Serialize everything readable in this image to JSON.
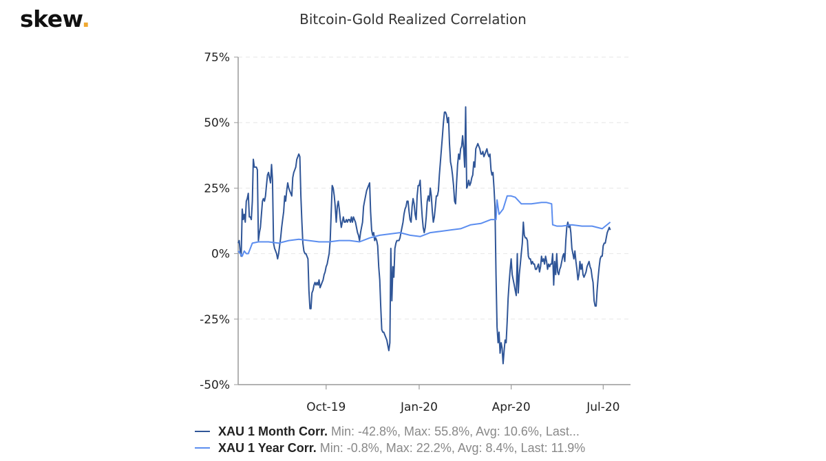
{
  "brand": {
    "name": "skew",
    "dot": "."
  },
  "colors": {
    "month": "#2f5597",
    "year": "#5b8def",
    "brand_dot": "#f0a830",
    "grid": "#e6e6e6",
    "axis": "#999999"
  },
  "chart_data": {
    "type": "line",
    "title": "Bitcoin-Gold Realized Correlation",
    "xlabel": "",
    "ylabel": "",
    "ylim": [
      -50,
      75
    ],
    "yticks": [
      75,
      50,
      25,
      0,
      -25,
      -50
    ],
    "ytick_labels": [
      "75%",
      "50%",
      "25%",
      "0%",
      "-25%",
      "-50%"
    ],
    "x_start": "2019-07-06",
    "x_end": "2020-07-28",
    "xticks": [
      {
        "date": "2019-10-01",
        "label": "Oct-19"
      },
      {
        "date": "2020-01-01",
        "label": "Jan-20"
      },
      {
        "date": "2020-04-01",
        "label": "Apr-20"
      },
      {
        "date": "2020-07-01",
        "label": "Jul-20"
      }
    ],
    "grid": "horizontal-dashed",
    "legend_position": "bottom-left",
    "series": [
      {
        "name": "XAU 1 Month Corr.",
        "stats": "Min: -42.8%, Max: 55.8%, Avg: 10.6%, Last...",
        "color": "#2f5597",
        "x_days": [
          0,
          1,
          2,
          3,
          4,
          5,
          6,
          7,
          8,
          9,
          10,
          11,
          12,
          13,
          14,
          15,
          16,
          17,
          18,
          19,
          20,
          21,
          22,
          23,
          24,
          25,
          26,
          27,
          28,
          29,
          30,
          31,
          32,
          33,
          34,
          35,
          36,
          37,
          38,
          39,
          40,
          41,
          42,
          43,
          44,
          45,
          46,
          47,
          48,
          49,
          50,
          51,
          52,
          53,
          54,
          55,
          56,
          57,
          58,
          59,
          60,
          61,
          62,
          63,
          64,
          65,
          66,
          67,
          68,
          69,
          70,
          71,
          72,
          73,
          74,
          75,
          76,
          77,
          78,
          79,
          80,
          81,
          82,
          83,
          84,
          85,
          86,
          87,
          88,
          89,
          90,
          91,
          92,
          93,
          94,
          95,
          96,
          97,
          98,
          99,
          100,
          101,
          102,
          103,
          104,
          105,
          106,
          107,
          108,
          109,
          110,
          111,
          112,
          113,
          114,
          115,
          116,
          117,
          118,
          119,
          120,
          121,
          122,
          123,
          124,
          125,
          126,
          127,
          128,
          129,
          130,
          131,
          132,
          133,
          134,
          135,
          136,
          137,
          138,
          139,
          140,
          141,
          142,
          143,
          144,
          145,
          146,
          147,
          148,
          149,
          150,
          151,
          152,
          153,
          154,
          155,
          156,
          157,
          158,
          159,
          160,
          161,
          162,
          163,
          164,
          165,
          166,
          167,
          168,
          169,
          170,
          171,
          172,
          173,
          174,
          175,
          176,
          177,
          178,
          179,
          180,
          181,
          182,
          183,
          184,
          185,
          186,
          187,
          188,
          189,
          190,
          191,
          192,
          193,
          194,
          195,
          196,
          197,
          198,
          199,
          200,
          201,
          202,
          203,
          204,
          205,
          206,
          207,
          208,
          209,
          210,
          211,
          212,
          213,
          214,
          215,
          216,
          217,
          218,
          219,
          220,
          221,
          222,
          223,
          224,
          225,
          226,
          227,
          228,
          229,
          230,
          231,
          232,
          233,
          234,
          235,
          236,
          237,
          238,
          239,
          240,
          241,
          242,
          243,
          244,
          245,
          246,
          247,
          248,
          249,
          250,
          251,
          252,
          253,
          254,
          255,
          256,
          257,
          258,
          259,
          260,
          261,
          262,
          263,
          264,
          265,
          266,
          267,
          268,
          269,
          270,
          271,
          272,
          273,
          274,
          275,
          276,
          277,
          278,
          279,
          280,
          281,
          282,
          283,
          284,
          285,
          286,
          287,
          288,
          289,
          290,
          291,
          292,
          293,
          294,
          295,
          296,
          297,
          298,
          299,
          300,
          301,
          302,
          303,
          304,
          305,
          306,
          307,
          308,
          309,
          310,
          311,
          312,
          313,
          314,
          315,
          316,
          317,
          318,
          319,
          320,
          321,
          322,
          323,
          324,
          325,
          326,
          327,
          328,
          329,
          330,
          331,
          332,
          333,
          334,
          335,
          336,
          337,
          338,
          339,
          340,
          341,
          342,
          343,
          344,
          345,
          346,
          347,
          348,
          349,
          350,
          351,
          352,
          353,
          354,
          355,
          356,
          357,
          358,
          359,
          360,
          361,
          362,
          363,
          364,
          365,
          366,
          367,
          368
        ],
        "values": [
          4,
          5,
          1,
          -1,
          17,
          13,
          15,
          12,
          20,
          21,
          23,
          14,
          14,
          13,
          20,
          36,
          33,
          33,
          33,
          32,
          5,
          8,
          10,
          15,
          20,
          21,
          20,
          22,
          26,
          30,
          31,
          29,
          27,
          34,
          28,
          4,
          2,
          1,
          0,
          -2,
          0,
          3,
          6,
          10,
          13,
          16,
          22,
          20,
          24,
          27,
          25,
          24,
          23,
          22,
          29,
          31,
          32,
          33,
          36,
          37,
          38,
          37,
          22,
          12,
          4,
          1,
          0,
          0,
          -1,
          -2,
          -14,
          -21,
          -21,
          -15,
          -14,
          -12,
          -11,
          -12,
          -11,
          -12,
          -10,
          -13,
          -12,
          -11,
          -10,
          -8,
          -7,
          -5,
          -4,
          -2,
          0,
          5,
          16,
          26,
          25,
          22,
          18,
          12,
          18,
          20,
          17,
          13,
          10,
          12,
          14,
          12,
          12,
          13,
          12,
          13,
          13,
          12,
          14,
          12,
          14,
          13,
          12,
          10,
          8,
          7,
          5,
          8,
          10,
          12,
          18,
          20,
          22,
          24,
          25,
          26,
          27,
          16,
          9,
          7,
          8,
          5,
          6,
          5,
          3,
          -5,
          -10,
          -20,
          -29,
          -30,
          -30,
          -31,
          -32,
          -33,
          -35,
          -37,
          -34,
          2,
          -18,
          -5,
          -9,
          2,
          4,
          5,
          5,
          5,
          6,
          8,
          10,
          12,
          15,
          17,
          18,
          20,
          20,
          16,
          13,
          12,
          18,
          21,
          19,
          15,
          13,
          22,
          26,
          26,
          28,
          20,
          14,
          10,
          8,
          10,
          14,
          20,
          22,
          20,
          25,
          22,
          16,
          12,
          14,
          18,
          22,
          22,
          24,
          30,
          35,
          40,
          45,
          50,
          54,
          54,
          53,
          50,
          52,
          42,
          35,
          33,
          30,
          26,
          20,
          19,
          27,
          34,
          38,
          36,
          40,
          41,
          45,
          40,
          33,
          56,
          25,
          26,
          28,
          26,
          27,
          29,
          30,
          35,
          33,
          40,
          41,
          42,
          41,
          40,
          38,
          38,
          39,
          37,
          38,
          39,
          40,
          38,
          37,
          38,
          32,
          30,
          31,
          25,
          18,
          -8,
          -28,
          -34,
          -30,
          -38,
          -34,
          -36,
          -42,
          -37,
          -33,
          -34,
          -26,
          -17,
          -11,
          -6,
          -2,
          -8,
          -10,
          -12,
          -14,
          -16,
          0,
          -15,
          -8,
          -4,
          0,
          4,
          12,
          7,
          6,
          6,
          5,
          -1,
          -2,
          -2,
          -4,
          -3,
          -4,
          -4,
          -6,
          -6,
          -5,
          -4,
          -7,
          -5,
          -1,
          -3,
          -2,
          -4,
          -1,
          -3,
          -6,
          -4,
          -5,
          -4,
          -4,
          0,
          -12,
          -3,
          -8,
          0,
          -7,
          -8,
          -6,
          -5,
          -3,
          -1,
          0,
          -3,
          5,
          10,
          12,
          10,
          11,
          8,
          2,
          0,
          -2,
          1,
          -3,
          -6,
          -10,
          -8,
          -3,
          -6,
          -4,
          -8,
          -9,
          -8,
          -7,
          -5,
          -4,
          -3,
          -5,
          -6,
          -9,
          -11,
          -18,
          -20,
          -20,
          -14,
          -9,
          -5,
          -2,
          -1,
          -1,
          3,
          4,
          4,
          6,
          8,
          9,
          10,
          9,
          9,
          9
        ],
        "_note": "reserved"
      },
      {
        "name": "XAU 1 Year Corr.",
        "stats": "Min: -0.8%, Max: 22.2%, Avg: 8.4%, Last: 11.9%",
        "color": "#5b8def",
        "x_days": [
          0,
          4,
          6,
          8,
          10,
          14,
          20,
          30,
          40,
          50,
          60,
          70,
          80,
          90,
          100,
          110,
          120,
          130,
          140,
          150,
          160,
          170,
          180,
          190,
          200,
          210,
          220,
          230,
          240,
          250,
          255,
          256,
          258,
          262,
          266,
          270,
          274,
          280,
          290,
          300,
          305,
          310,
          311,
          315,
          320,
          330,
          340,
          350,
          360,
          368
        ],
        "values": [
          1,
          -1,
          1,
          0,
          0,
          4,
          4.5,
          4.5,
          4,
          5,
          5.5,
          5,
          4.5,
          4.5,
          5,
          5,
          4.5,
          6,
          7,
          7.5,
          8,
          7,
          6.5,
          8,
          8.5,
          9,
          9.5,
          11,
          11.5,
          13,
          13,
          20.5,
          15,
          17,
          22,
          22,
          21.5,
          19,
          19,
          19.5,
          19.5,
          19,
          11,
          10.5,
          10.5,
          11,
          10.5,
          10.5,
          9.5,
          12
        ]
      }
    ]
  },
  "legend": {
    "items": [
      {
        "name": "XAU 1 Month Corr.",
        "stats": "Min: -42.8%, Max: 55.8%, Avg: 10.6%, Last..."
      },
      {
        "name": "XAU 1 Year Corr.",
        "stats": "Min: -0.8%, Max: 22.2%, Avg: 8.4%, Last: 11.9%"
      }
    ]
  }
}
